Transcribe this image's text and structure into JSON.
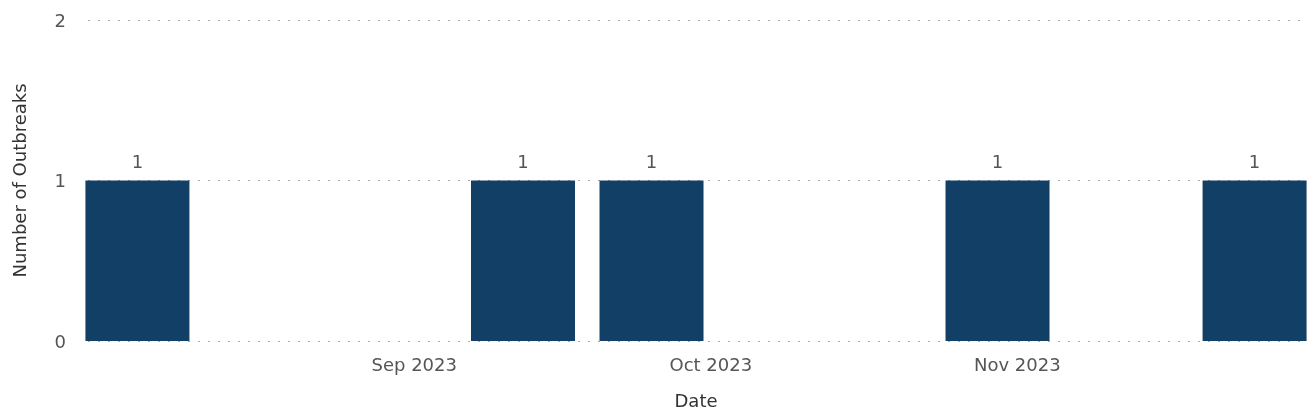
{
  "chart_data": {
    "type": "bar",
    "xlabel": "Date",
    "ylabel": "Number of Outbreaks",
    "x": [
      "2023-08-04",
      "2023-09-12",
      "2023-09-25",
      "2023-10-30",
      "2023-11-25"
    ],
    "values": [
      1,
      1,
      1,
      1,
      1
    ],
    "color": "#123f66",
    "xlim": [
      "2023-07-30",
      "2023-11-30"
    ],
    "xticks": [
      {
        "value": "2023-09-01",
        "label": "Sep 2023"
      },
      {
        "value": "2023-10-01",
        "label": "Oct 2023"
      },
      {
        "value": "2023-11-01",
        "label": "Nov 2023"
      }
    ],
    "ylim": [
      0,
      2
    ],
    "yticks": [
      0,
      1,
      2
    ],
    "grid": "y",
    "data_labels": true
  }
}
